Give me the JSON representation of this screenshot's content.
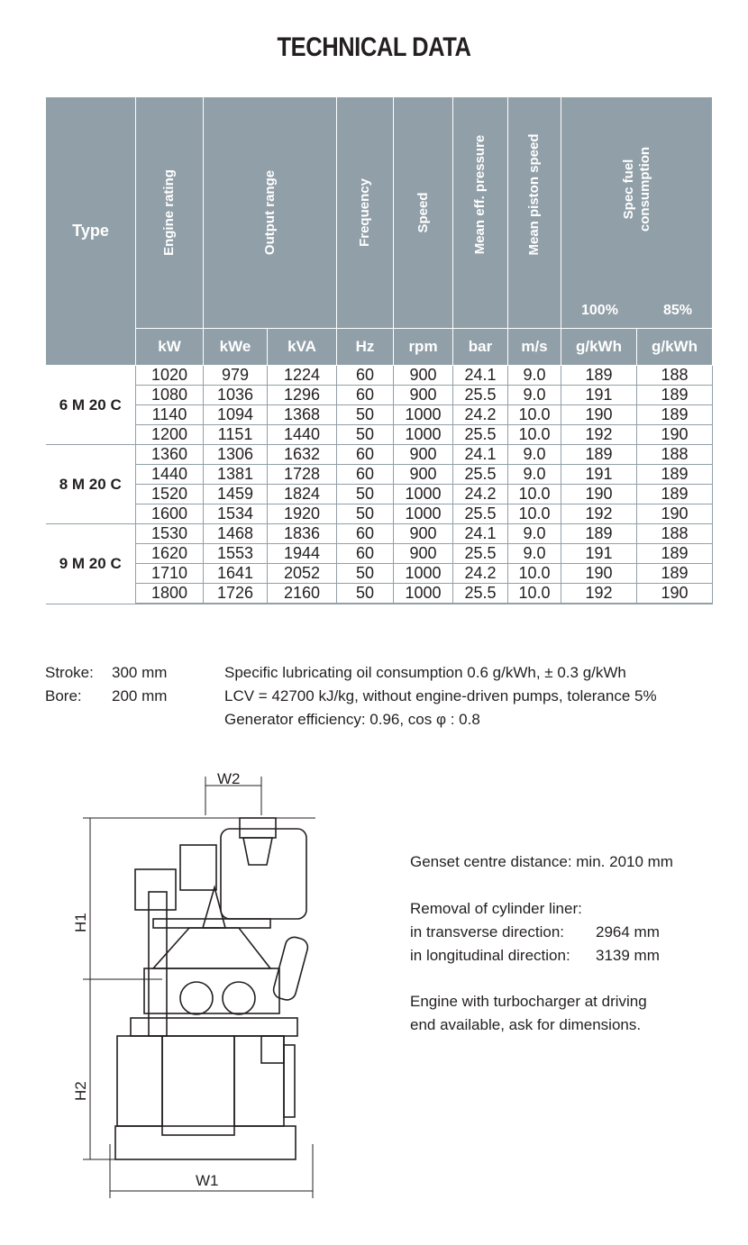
{
  "title": "TECHNICAL DATA",
  "table": {
    "headers": [
      "Type",
      "Engine rating",
      "Output range",
      "Frequency",
      "Speed",
      "Mean eff. pressure",
      "Mean piston speed",
      "Spec fuel consumption"
    ],
    "fuel_loads": [
      "100%",
      "85%"
    ],
    "units": [
      "kW",
      "kWe",
      "kVA",
      "Hz",
      "rpm",
      "bar",
      "m/s",
      "g/kWh",
      "g/kWh"
    ],
    "groups": [
      {
        "type": "6 M 20 C",
        "rows": [
          [
            "1020",
            "979",
            "1224",
            "60",
            "900",
            "24.1",
            "9.0",
            "189",
            "188"
          ],
          [
            "1080",
            "1036",
            "1296",
            "60",
            "900",
            "25.5",
            "9.0",
            "191",
            "189"
          ],
          [
            "1140",
            "1094",
            "1368",
            "50",
            "1000",
            "24.2",
            "10.0",
            "190",
            "189"
          ],
          [
            "1200",
            "1151",
            "1440",
            "50",
            "1000",
            "25.5",
            "10.0",
            "192",
            "190"
          ]
        ]
      },
      {
        "type": "8 M 20 C",
        "rows": [
          [
            "1360",
            "1306",
            "1632",
            "60",
            "900",
            "24.1",
            "9.0",
            "189",
            "188"
          ],
          [
            "1440",
            "1381",
            "1728",
            "60",
            "900",
            "25.5",
            "9.0",
            "191",
            "189"
          ],
          [
            "1520",
            "1459",
            "1824",
            "50",
            "1000",
            "24.2",
            "10.0",
            "190",
            "189"
          ],
          [
            "1600",
            "1534",
            "1920",
            "50",
            "1000",
            "25.5",
            "10.0",
            "192",
            "190"
          ]
        ]
      },
      {
        "type": "9 M 20 C",
        "rows": [
          [
            "1530",
            "1468",
            "1836",
            "60",
            "900",
            "24.1",
            "9.0",
            "189",
            "188"
          ],
          [
            "1620",
            "1553",
            "1944",
            "60",
            "900",
            "25.5",
            "9.0",
            "191",
            "189"
          ],
          [
            "1710",
            "1641",
            "2052",
            "50",
            "1000",
            "24.2",
            "10.0",
            "190",
            "189"
          ],
          [
            "1800",
            "1726",
            "2160",
            "50",
            "1000",
            "25.5",
            "10.0",
            "192",
            "190"
          ]
        ]
      }
    ]
  },
  "specs": {
    "stroke_label": "Stroke:",
    "stroke": "300 mm",
    "bore_label": "Bore:",
    "bore": "200 mm"
  },
  "notes": [
    "Specific lubricating oil consumption 0.6 g/kWh, ± 0.3 g/kWh",
    "LCV = 42700 kJ/kg, without engine-driven pumps, tolerance 5%",
    "Generator efficiency: 0.96, cos φ : 0.8"
  ],
  "drawing": {
    "labels": [
      "W2",
      "H1",
      "H2",
      "W1"
    ]
  },
  "info": {
    "genset": "Genset centre distance: min. 2010 mm",
    "removal_title": "Removal of cylinder liner:",
    "transverse_label": "in transverse direction:",
    "transverse": "2964 mm",
    "longitudinal_label": "in longitudinal direction:",
    "longitudinal": "3139 mm",
    "turbo": [
      "Engine with turbocharger at driving",
      "end available, ask for dimensions."
    ]
  },
  "colors": {
    "header_bg": "#919fa8"
  }
}
